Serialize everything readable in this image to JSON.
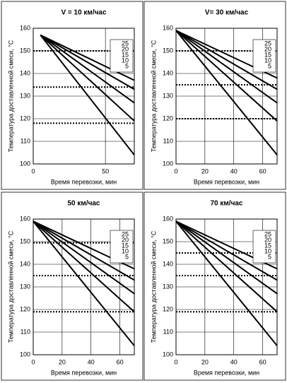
{
  "chart_data": [
    {
      "type": "line",
      "title": "V = 10 км/час",
      "x_label": "Время перевозки, мин",
      "y_label": "Температура доставленной смеси, °С",
      "x": [
        5,
        70
      ],
      "xlim": [
        0,
        70
      ],
      "xticks": [
        0,
        50
      ],
      "ylim": [
        100,
        160
      ],
      "yticks": [
        100,
        110,
        120,
        130,
        140,
        150,
        160
      ],
      "grid": true,
      "series": [
        {
          "name": "25",
          "color": "#000000",
          "values": [
            157,
            137
          ]
        },
        {
          "name": "20",
          "color": "#000000",
          "values": [
            157,
            133
          ]
        },
        {
          "name": "15",
          "color": "#000000",
          "values": [
            157,
            127
          ]
        },
        {
          "name": "10",
          "color": "#000000",
          "values": [
            157,
            119
          ]
        },
        {
          "name": "5",
          "color": "#000000",
          "values": [
            157,
            104
          ]
        }
      ],
      "hlines": [
        150,
        134,
        118
      ]
    },
    {
      "type": "line",
      "title": "V= 30 км/час",
      "x_label": "Время перевозки, мин",
      "y_label": "Температура доставленной смеси, °С",
      "x": [
        0,
        70
      ],
      "xlim": [
        0,
        70
      ],
      "xticks": [
        0,
        20,
        40,
        60
      ],
      "ylim": [
        100,
        160
      ],
      "yticks": [
        100,
        110,
        120,
        130,
        140,
        150,
        160
      ],
      "grid": true,
      "series": [
        {
          "name": "25",
          "color": "#000000",
          "values": [
            159,
            138
          ]
        },
        {
          "name": "20",
          "color": "#000000",
          "values": [
            159,
            133
          ]
        },
        {
          "name": "15",
          "color": "#000000",
          "values": [
            159,
            127
          ]
        },
        {
          "name": "10",
          "color": "#000000",
          "values": [
            159,
            119
          ]
        },
        {
          "name": "5",
          "color": "#000000",
          "values": [
            159,
            104
          ]
        }
      ],
      "hlines": [
        150,
        135,
        120
      ]
    },
    {
      "type": "line",
      "title": "50 км/час",
      "x_label": "Время перевозки, мин",
      "y_label": "Температура доставленной смеси, °С",
      "x": [
        0,
        70
      ],
      "xlim": [
        0,
        70
      ],
      "xticks": [
        0,
        20,
        40,
        60
      ],
      "ylim": [
        100,
        160
      ],
      "yticks": [
        100,
        110,
        120,
        130,
        140,
        150,
        160
      ],
      "grid": true,
      "series": [
        {
          "name": "25",
          "color": "#000000",
          "values": [
            159,
            138
          ]
        },
        {
          "name": "20",
          "color": "#000000",
          "values": [
            159,
            133
          ]
        },
        {
          "name": "15",
          "color": "#000000",
          "values": [
            159,
            127
          ]
        },
        {
          "name": "10",
          "color": "#000000",
          "values": [
            159,
            119
          ]
        },
        {
          "name": "5",
          "color": "#000000",
          "values": [
            159,
            104
          ]
        }
      ],
      "hlines": [
        149.5,
        135,
        119
      ]
    },
    {
      "type": "line",
      "title": "70 км/час",
      "x_label": "Время перевозки, мин",
      "y_label": "Температура доставленной смеси, °С",
      "x": [
        0,
        70
      ],
      "xlim": [
        0,
        70
      ],
      "xticks": [
        0,
        20,
        40,
        60
      ],
      "ylim": [
        100,
        160
      ],
      "yticks": [
        100,
        110,
        120,
        130,
        140,
        150,
        160
      ],
      "grid": true,
      "series": [
        {
          "name": "25",
          "color": "#000000",
          "values": [
            159,
            138
          ]
        },
        {
          "name": "20",
          "color": "#000000",
          "values": [
            159,
            133
          ]
        },
        {
          "name": "15",
          "color": "#000000",
          "values": [
            159,
            127
          ]
        },
        {
          "name": "10",
          "color": "#000000",
          "values": [
            159,
            119
          ]
        },
        {
          "name": "5",
          "color": "#000000",
          "values": [
            159,
            104
          ]
        }
      ],
      "hlines": [
        145,
        135,
        119
      ]
    }
  ]
}
